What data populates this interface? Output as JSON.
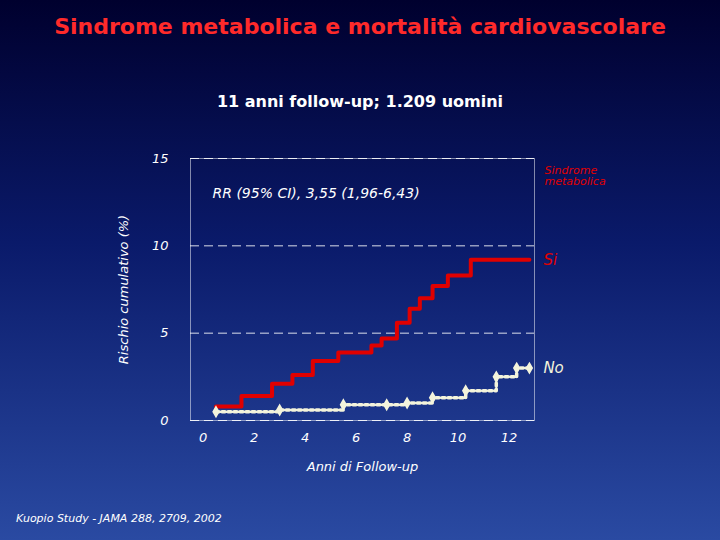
{
  "chart_data": {
    "type": "line",
    "title": "Sindrome metabolica e mortalità cardiovascolare",
    "subtitle": "11 anni follow-up; 1.209 uomini",
    "x_label": "Anni di Follow-up",
    "y_label": "Rischio cumulativo (%)",
    "legend_title": "Sindrome metabolica",
    "annotations": [
      "RR (95% CI), 3,55 (1,96-6,43)"
    ],
    "source": "Kuopio Study - JAMA 288, 2709, 2002",
    "xlim": [
      -0.5,
      13
    ],
    "xticks": [
      0,
      2,
      4,
      6,
      8,
      10,
      12
    ],
    "ylim": [
      0,
      15
    ],
    "yticks": [
      0,
      5,
      10,
      15
    ],
    "grid": true,
    "series": [
      {
        "name": "Si",
        "color": "#e00000",
        "line_style": "solid",
        "x": [
          0.5,
          1.5,
          2.7,
          3.5,
          4.3,
          5.3,
          6.6,
          7.0,
          7.6,
          8.1,
          8.5,
          9.0,
          9.6,
          10.5,
          12.8
        ],
        "values": [
          0.8,
          1.4,
          2.1,
          2.6,
          3.4,
          3.9,
          4.3,
          4.7,
          5.6,
          6.4,
          7.0,
          7.7,
          8.3,
          9.2,
          9.2
        ]
      },
      {
        "name": "No",
        "color": "#f4f4dc",
        "line_style": "dotted",
        "marker": "diamond",
        "x": [
          0.5,
          3.0,
          5.5,
          7.2,
          8.0,
          9.0,
          10.3,
          11.5,
          12.3,
          12.8
        ],
        "values": [
          0.5,
          0.6,
          0.9,
          0.9,
          1.0,
          1.3,
          1.7,
          2.5,
          3.0,
          3.0
        ]
      }
    ]
  }
}
